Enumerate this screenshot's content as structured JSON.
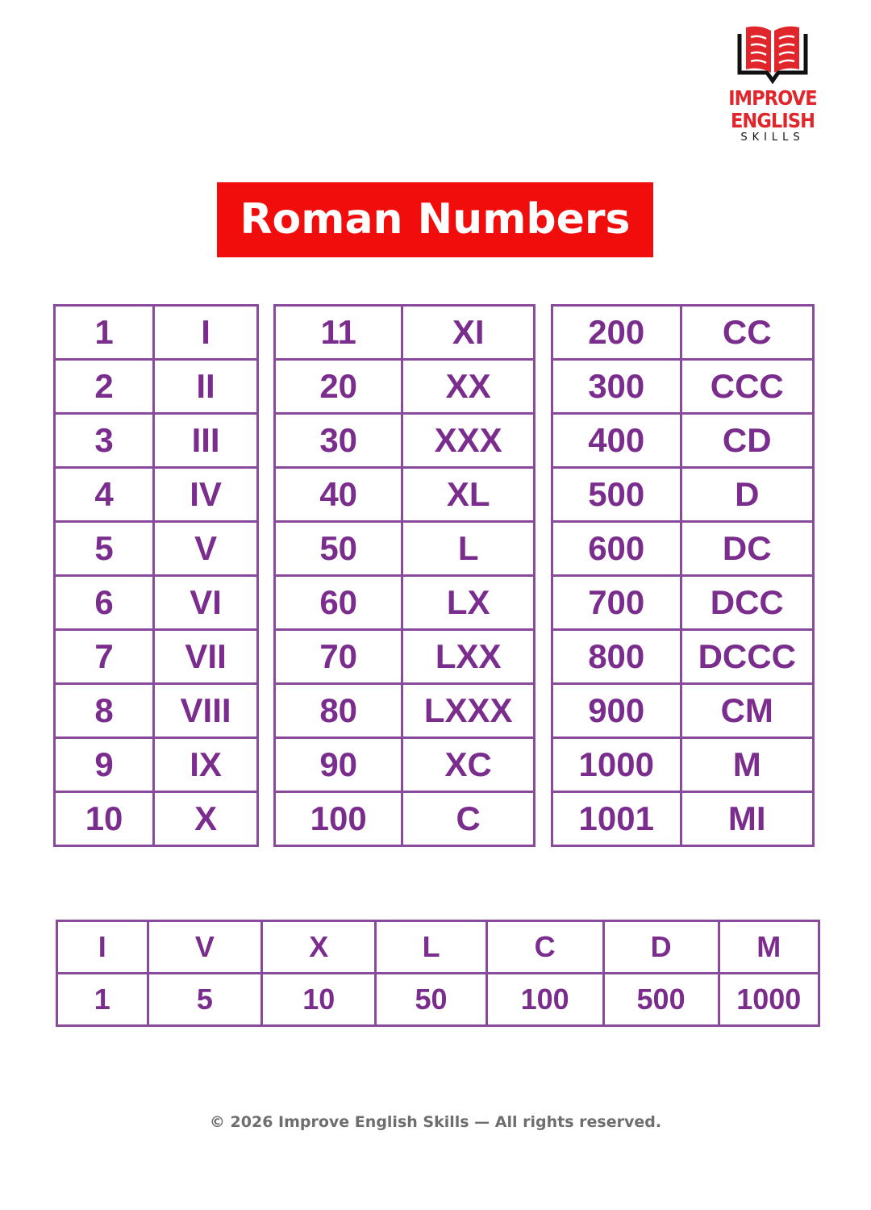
{
  "logo": {
    "line1": "IMPROVE ENGLISH",
    "line2": "SKILLS",
    "brand_color": "#e0262b"
  },
  "title": "Roman Numbers",
  "tables": [
    {
      "rows": [
        [
          "1",
          "I"
        ],
        [
          "2",
          "II"
        ],
        [
          "3",
          "III"
        ],
        [
          "4",
          "IV"
        ],
        [
          "5",
          "V"
        ],
        [
          "6",
          "VI"
        ],
        [
          "7",
          "VII"
        ],
        [
          "8",
          "VIII"
        ],
        [
          "9",
          "IX"
        ],
        [
          "10",
          "X"
        ]
      ]
    },
    {
      "rows": [
        [
          "11",
          "XI"
        ],
        [
          "20",
          "XX"
        ],
        [
          "30",
          "XXX"
        ],
        [
          "40",
          "XL"
        ],
        [
          "50",
          "L"
        ],
        [
          "60",
          "LX"
        ],
        [
          "70",
          "LXX"
        ],
        [
          "80",
          "LXXX"
        ],
        [
          "90",
          "XC"
        ],
        [
          "100",
          "C"
        ]
      ]
    },
    {
      "rows": [
        [
          "200",
          "CC"
        ],
        [
          "300",
          "CCC"
        ],
        [
          "400",
          "CD"
        ],
        [
          "500",
          "D"
        ],
        [
          "600",
          "DC"
        ],
        [
          "700",
          "DCC"
        ],
        [
          "800",
          "DCCC"
        ],
        [
          "900",
          "CM"
        ],
        [
          "1000",
          "M"
        ],
        [
          "1001",
          "MI"
        ]
      ]
    }
  ],
  "symbols": {
    "letters": [
      "I",
      "V",
      "X",
      "L",
      "C",
      "D",
      "M"
    ],
    "values": [
      "1",
      "5",
      "10",
      "50",
      "100",
      "500",
      "1000"
    ]
  },
  "footer": "© 2026 Improve English Skills — All rights reserved.",
  "colors": {
    "title_bg": "#f20d0d",
    "table_text": "#7b2d8e",
    "table_border": "#8a4a9c"
  }
}
